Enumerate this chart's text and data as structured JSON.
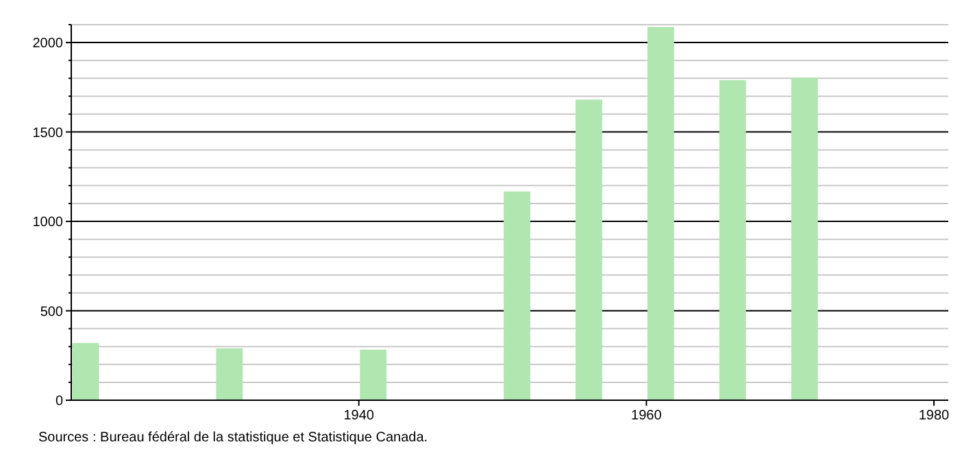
{
  "chart_data": {
    "type": "bar",
    "x": [
      1921,
      1931,
      1941,
      1951,
      1956,
      1961,
      1966,
      1971
    ],
    "values": [
      320,
      290,
      283,
      1167,
      1681,
      2087,
      1790,
      1804
    ],
    "color": "#b0e6b0",
    "xlim": [
      1920,
      1981
    ],
    "xticks": [
      1940,
      1960,
      1980
    ],
    "ylim": [
      0,
      2100
    ],
    "yticks": [
      0,
      {
        "value": 100,
        "label": null
      },
      {
        "value": 200,
        "label": null
      },
      {
        "value": 300,
        "label": null
      },
      {
        "value": 400,
        "label": null
      },
      500,
      {
        "value": 600,
        "label": null
      },
      {
        "value": 700,
        "label": null
      },
      {
        "value": 800,
        "label": null
      },
      {
        "value": 900,
        "label": null
      },
      1000,
      {
        "value": 1100,
        "label": null
      },
      {
        "value": 1200,
        "label": null
      },
      {
        "value": 1300,
        "label": null
      },
      {
        "value": 1400,
        "label": null
      },
      1500,
      {
        "value": 1600,
        "label": null
      },
      {
        "value": 1700,
        "label": null
      },
      {
        "value": 1800,
        "label": null
      },
      {
        "value": 1900,
        "label": null
      },
      2000,
      {
        "value": 2100,
        "label": null
      }
    ],
    "grid": "y",
    "annotations": [
      "Sources : Bureau fédéral de la statistique et Statistique Canada."
    ]
  }
}
